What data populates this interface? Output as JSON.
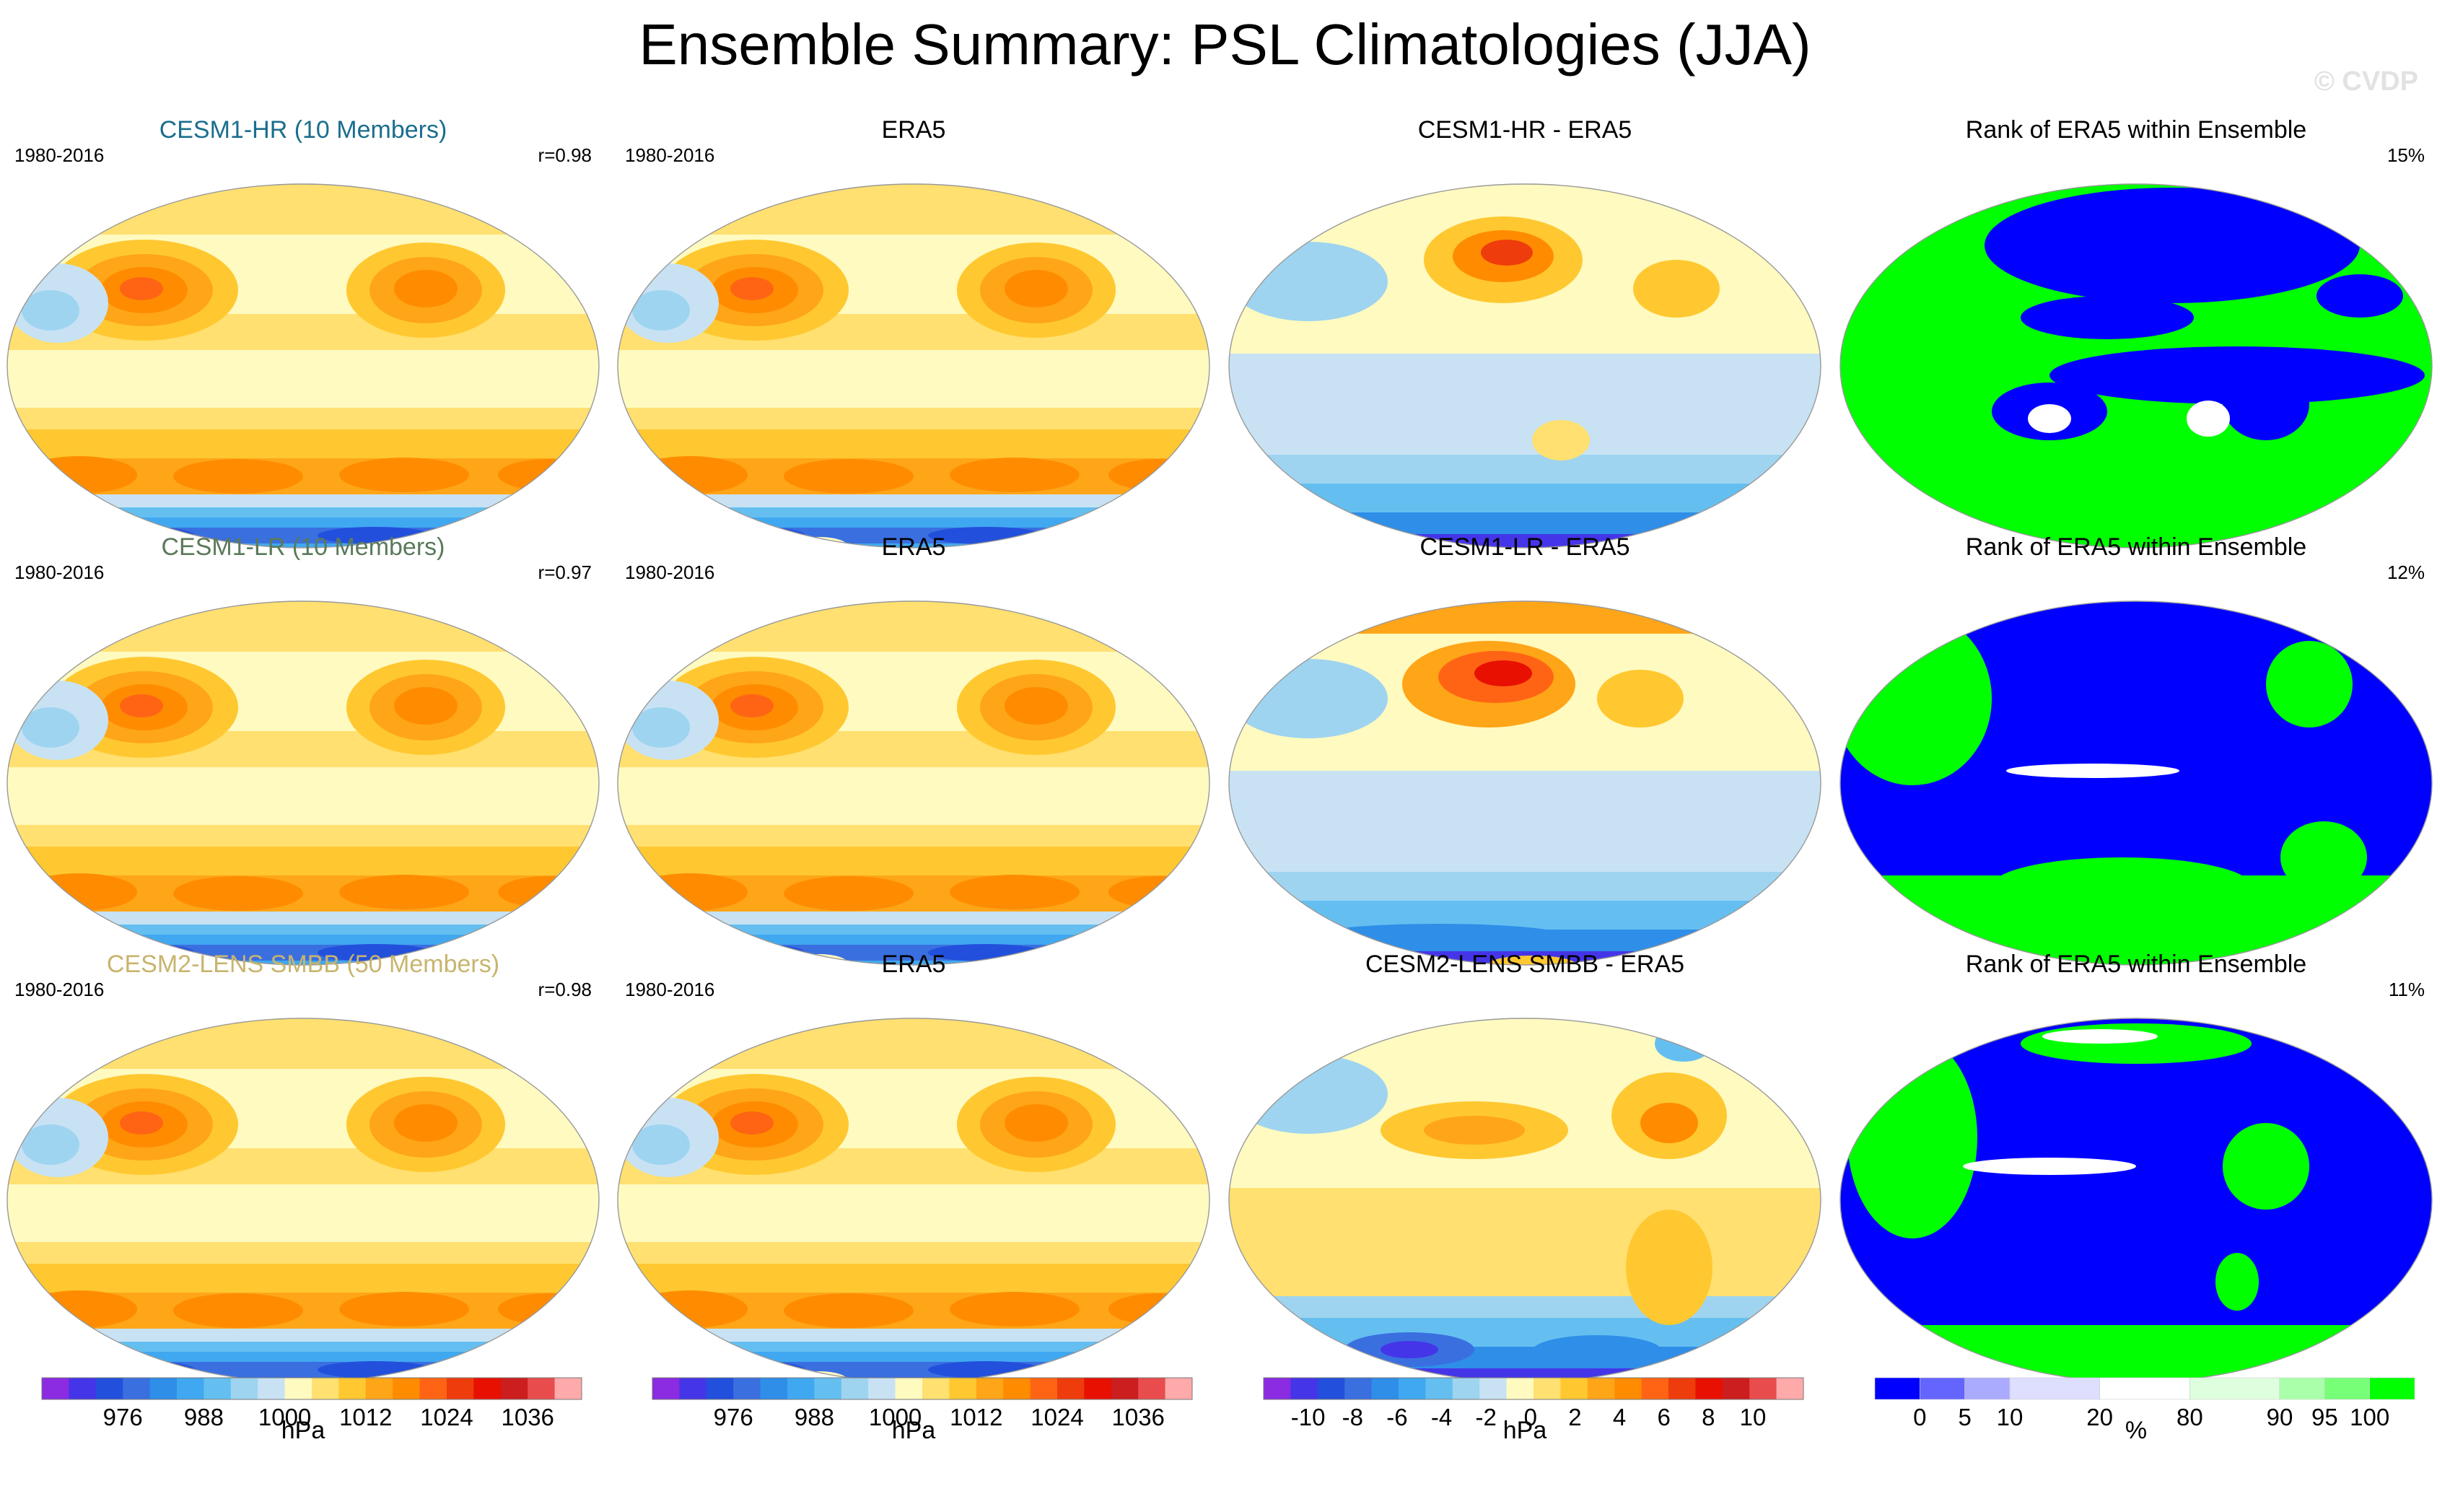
{
  "title": "Ensemble Summary: PSL Climatologies (JJA)",
  "copyright": "© CVDP",
  "colors": {
    "psl": [
      "#8b2be2",
      "#4535e8",
      "#2250dc",
      "#3a6fe0",
      "#2e8ee8",
      "#40a8f0",
      "#64bff0",
      "#9ed4f0",
      "#c8e2f4",
      "#fffac0",
      "#ffe070",
      "#ffc830",
      "#ffa518",
      "#ff8c00",
      "#ff6414",
      "#ee3c0c",
      "#e81000",
      "#cc1e1e",
      "#e84c4c",
      "#ffaaaa"
    ],
    "rank": [
      "#0000ff",
      "#6464ff",
      "#aaaaff",
      "#dedeff",
      "#ffffff",
      "#ddffdd",
      "#aaffaa",
      "#77ff77",
      "#00ff00"
    ]
  },
  "panels": [
    [
      {
        "title": "CESM1-HR (10 Members)",
        "title_color": "#1a6e8e",
        "left_label": "1980-2016",
        "right_label": "r=0.98",
        "kind": "model"
      },
      {
        "title": "ERA5",
        "title_color": "#000000",
        "left_label": "1980-2016",
        "right_label": "",
        "kind": "obs"
      },
      {
        "title": "CESM1-HR - ERA5",
        "title_color": "#000000",
        "left_label": "",
        "right_label": "",
        "kind": "diff"
      },
      {
        "title": "Rank of ERA5 within Ensemble",
        "title_color": "#000000",
        "left_label": "",
        "right_label": "15%",
        "kind": "rank"
      }
    ],
    [
      {
        "title": "CESM1-LR (10 Members)",
        "title_color": "#5a7a5a",
        "left_label": "1980-2016",
        "right_label": "r=0.97",
        "kind": "model"
      },
      {
        "title": "ERA5",
        "title_color": "#000000",
        "left_label": "1980-2016",
        "right_label": "",
        "kind": "obs"
      },
      {
        "title": "CESM1-LR - ERA5",
        "title_color": "#000000",
        "left_label": "",
        "right_label": "",
        "kind": "diff"
      },
      {
        "title": "Rank of ERA5 within Ensemble",
        "title_color": "#000000",
        "left_label": "",
        "right_label": "12%",
        "kind": "rank"
      }
    ],
    [
      {
        "title": "CESM2-LENS SMBB (50 Members)",
        "title_color": "#c8b46e",
        "left_label": "1980-2016",
        "right_label": "r=0.98",
        "kind": "model"
      },
      {
        "title": "ERA5",
        "title_color": "#000000",
        "left_label": "1980-2016",
        "right_label": "",
        "kind": "obs"
      },
      {
        "title": "CESM2-LENS SMBB - ERA5",
        "title_color": "#000000",
        "left_label": "",
        "right_label": "",
        "kind": "diff"
      },
      {
        "title": "Rank of ERA5 within Ensemble",
        "title_color": "#000000",
        "left_label": "",
        "right_label": "11%",
        "kind": "rank"
      }
    ]
  ],
  "colorbars": [
    {
      "unit": "hPa",
      "labels": [
        "976",
        "988",
        "1000",
        "1012",
        "1024",
        "1036"
      ],
      "palette": "psl"
    },
    {
      "unit": "hPa",
      "labels": [
        "976",
        "988",
        "1000",
        "1012",
        "1024",
        "1036"
      ],
      "palette": "psl"
    },
    {
      "unit": "hPa",
      "labels": [
        "-10",
        "-8",
        "-6",
        "-4",
        "-2",
        "0",
        "2",
        "4",
        "6",
        "8",
        "10"
      ],
      "palette": "psl"
    },
    {
      "unit": "%",
      "labels": [
        "0",
        "5",
        "10",
        "20",
        "80",
        "90",
        "95",
        "100"
      ],
      "palette": "rank"
    }
  ],
  "chart_data": [
    {
      "type": "heatmap",
      "title": "CESM1-HR (10 Members)",
      "period": "1980-2016",
      "pattern_correlation": 0.98,
      "variable": "PSL",
      "season": "JJA",
      "units": "hPa",
      "contour_levels": [
        972,
        976,
        980,
        984,
        988,
        992,
        996,
        1000,
        1004,
        1008,
        1012,
        1016,
        1020,
        1024,
        1028,
        1032,
        1036,
        1040,
        1044
      ]
    },
    {
      "type": "heatmap",
      "title": "ERA5",
      "period": "1980-2016",
      "variable": "PSL",
      "season": "JJA",
      "units": "hPa"
    },
    {
      "type": "heatmap",
      "title": "CESM1-HR - ERA5",
      "units": "hPa",
      "contour_levels": [
        -10,
        -9,
        -8,
        -7,
        -6,
        -5,
        -4,
        -3,
        -2,
        -1,
        0,
        1,
        2,
        3,
        4,
        5,
        6,
        7,
        8,
        9,
        10
      ]
    },
    {
      "type": "heatmap",
      "title": "Rank of ERA5 within Ensemble",
      "units": "%",
      "rank_outside_pct": 15,
      "levels": [
        0,
        5,
        10,
        20,
        80,
        90,
        95,
        100
      ]
    },
    {
      "type": "heatmap",
      "title": "CESM1-LR (10 Members)",
      "period": "1980-2016",
      "pattern_correlation": 0.97,
      "units": "hPa"
    },
    {
      "type": "heatmap",
      "title": "ERA5",
      "period": "1980-2016",
      "units": "hPa"
    },
    {
      "type": "heatmap",
      "title": "CESM1-LR - ERA5",
      "units": "hPa"
    },
    {
      "type": "heatmap",
      "title": "Rank of ERA5 within Ensemble",
      "units": "%",
      "rank_outside_pct": 12
    },
    {
      "type": "heatmap",
      "title": "CESM2-LENS SMBB (50 Members)",
      "period": "1980-2016",
      "pattern_correlation": 0.98,
      "units": "hPa"
    },
    {
      "type": "heatmap",
      "title": "ERA5",
      "period": "1980-2016",
      "units": "hPa"
    },
    {
      "type": "heatmap",
      "title": "CESM2-LENS SMBB - ERA5",
      "units": "hPa"
    },
    {
      "type": "heatmap",
      "title": "Rank of ERA5 within Ensemble",
      "units": "%",
      "rank_outside_pct": 11
    }
  ]
}
